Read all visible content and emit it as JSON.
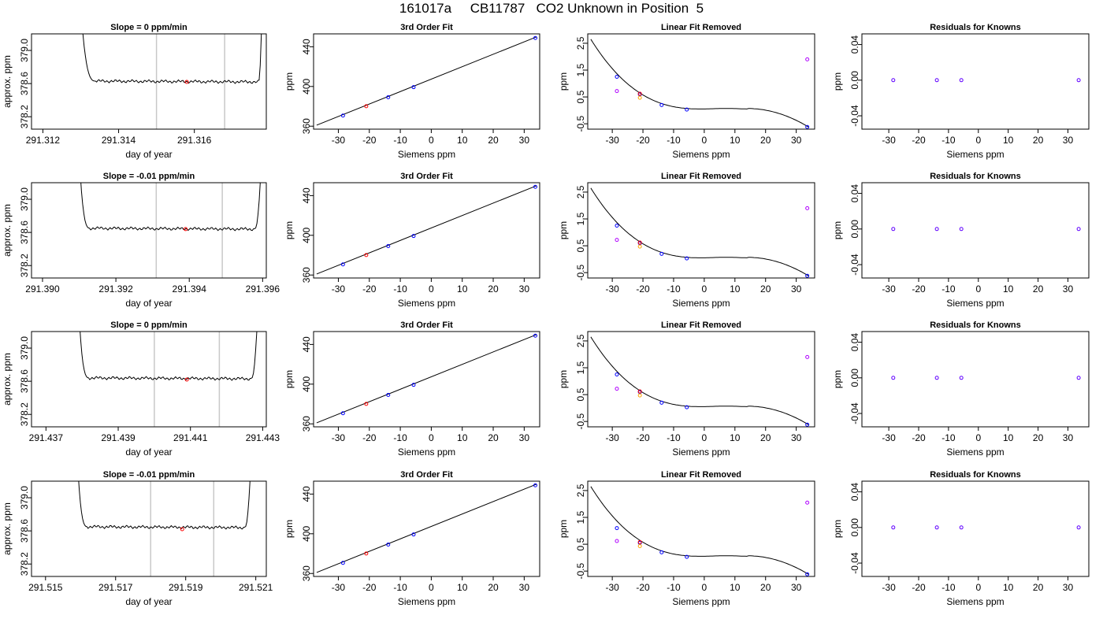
{
  "page_title": "161017a     CB11787   CO2 Unknown in Position  5",
  "chart_data": [
    {
      "type": "line",
      "title": "Slope =  0  ppm/min",
      "xlabel": "day of year",
      "ylabel": "approx. ppm",
      "xlim": [
        291.3117,
        291.3179
      ],
      "ylim": [
        378.05,
        379.2
      ],
      "xticks": [
        "291.312",
        "291.314",
        "291.316"
      ],
      "xtick_values": [
        291.312,
        291.314,
        291.316
      ],
      "yticks": [
        "378.2",
        "378.6",
        "379.0"
      ],
      "ytick_values": [
        378.2,
        378.6,
        379.0
      ],
      "vlines": [
        291.315,
        291.3168
      ],
      "trace": {
        "start": 291.313,
        "end": 291.3178,
        "plateau_start": 291.3134,
        "plateau_end": 291.3177,
        "plateau_level": 378.63
      },
      "marker": {
        "x": 291.3158,
        "y": 378.62,
        "color": "#ff0000"
      }
    },
    {
      "type": "scatter",
      "title": "3rd Order Fit",
      "xlabel": "Siemens ppm",
      "ylabel": "ppm",
      "xlim": [
        -38,
        35
      ],
      "ylim": [
        357,
        453
      ],
      "xticks": [
        "-30",
        "-20",
        "-10",
        "0",
        "10",
        "20",
        "30"
      ],
      "xtick_values": [
        -30,
        -20,
        -10,
        0,
        10,
        20,
        30
      ],
      "yticks": [
        "360",
        "400",
        "440"
      ],
      "ytick_values": [
        360,
        400,
        440
      ],
      "fit_line": [
        [
          -37,
          361
        ],
        [
          34,
          450
        ]
      ],
      "series": [
        {
          "values": [
            [
              -28.5,
              370.7
            ],
            [
              -13.9,
              389.1
            ],
            [
              -5.7,
              399.3
            ],
            [
              33.6,
              448.8
            ]
          ],
          "color": "#0000ff"
        },
        {
          "values": [
            [
              -21.0,
              380.1
            ]
          ],
          "color": "#ff0000"
        }
      ]
    },
    {
      "type": "scatter",
      "title": "Linear Fit Removed",
      "xlabel": "Siemens ppm",
      "ylabel": "ppm",
      "xlim": [
        -38,
        36
      ],
      "ylim": [
        -0.7,
        2.85
      ],
      "xticks": [
        "-30",
        "-20",
        "-10",
        "0",
        "10",
        "20",
        "30"
      ],
      "xtick_values": [
        -30,
        -20,
        -10,
        0,
        10,
        20,
        30
      ],
      "yticks": [
        "-0.5",
        "0.5",
        "1.5",
        "2.5"
      ],
      "ytick_values": [
        -0.5,
        0.5,
        1.5,
        2.5
      ],
      "curve": {
        "x0": -37,
        "x1": 34,
        "y_start": 2.65,
        "y_flat": 0.05,
        "y_end": -0.62
      },
      "series": [
        {
          "values": [
            [
              -28.5,
              1.25
            ],
            [
              -21.0,
              0.6
            ],
            [
              -13.9,
              0.2
            ],
            [
              -5.7,
              0.03
            ],
            [
              33.6,
              -0.62
            ]
          ],
          "color": "#0000ff"
        },
        {
          "values": [
            [
              -28.5,
              0.72
            ],
            [
              33.6,
              1.9
            ]
          ],
          "color": "#b000ff"
        },
        {
          "values": [
            [
              -21.0,
              0.47
            ]
          ],
          "color": "#ffa500"
        },
        {
          "values": [
            [
              -21.0,
              0.62
            ]
          ],
          "color": "#ff0000"
        }
      ]
    },
    {
      "type": "scatter",
      "title": "Residuals for Knowns",
      "xlabel": "Siemens ppm",
      "ylabel": "ppm",
      "xlim": [
        -39,
        37
      ],
      "ylim": [
        -0.055,
        0.052
      ],
      "xticks": [
        "-30",
        "-20",
        "-10",
        "0",
        "10",
        "20",
        "30"
      ],
      "xtick_values": [
        -30,
        -20,
        -10,
        0,
        10,
        20,
        30
      ],
      "yticks": [
        "-0.04",
        "0.00",
        "0.04"
      ],
      "ytick_values": [
        -0.04,
        0.0,
        0.04
      ],
      "series": [
        {
          "values": [
            [
              -28.5,
              0.0
            ],
            [
              -13.9,
              0.0
            ],
            [
              -5.7,
              0.0
            ],
            [
              33.6,
              0.0
            ]
          ],
          "color": "#6000ff"
        }
      ]
    },
    {
      "type": "line",
      "title": "Slope =  -0.01  ppm/min",
      "xlabel": "day of year",
      "ylabel": "approx. ppm",
      "xlim": [
        291.3897,
        291.3961
      ],
      "ylim": [
        378.05,
        379.2
      ],
      "xticks": [
        "291.390",
        "291.392",
        "291.394",
        "291.396"
      ],
      "xtick_values": [
        291.39,
        291.392,
        291.394,
        291.396
      ],
      "yticks": [
        "378.2",
        "378.6",
        "379.0"
      ],
      "ytick_values": [
        378.2,
        378.6,
        379.0
      ],
      "vlines": [
        291.3931,
        291.3949
      ],
      "trace": {
        "start": 291.391,
        "end": 291.396,
        "plateau_start": 291.3913,
        "plateau_end": 291.3958,
        "plateau_level": 378.65
      },
      "marker": {
        "x": 291.3939,
        "y": 378.64,
        "color": "#ff0000"
      }
    },
    {
      "type": "scatter",
      "title": "3rd Order Fit",
      "xlabel": "Siemens ppm",
      "ylabel": "ppm",
      "xlim": [
        -38,
        35
      ],
      "ylim": [
        357,
        453
      ],
      "xticks": [
        "-30",
        "-20",
        "-10",
        "0",
        "10",
        "20",
        "30"
      ],
      "xtick_values": [
        -30,
        -20,
        -10,
        0,
        10,
        20,
        30
      ],
      "yticks": [
        "360",
        "400",
        "440"
      ],
      "ytick_values": [
        360,
        400,
        440
      ],
      "fit_line": [
        [
          -37,
          361
        ],
        [
          34,
          450
        ]
      ],
      "series": [
        {
          "values": [
            [
              -28.5,
              370.7
            ],
            [
              -13.9,
              389.1
            ],
            [
              -5.7,
              399.3
            ],
            [
              33.6,
              448.8
            ]
          ],
          "color": "#0000ff"
        },
        {
          "values": [
            [
              -21.0,
              380.1
            ]
          ],
          "color": "#ff0000"
        }
      ]
    },
    {
      "type": "scatter",
      "title": "Linear Fit Removed",
      "xlabel": "Siemens ppm",
      "ylabel": "ppm",
      "xlim": [
        -38,
        36
      ],
      "ylim": [
        -0.7,
        2.85
      ],
      "xticks": [
        "-30",
        "-20",
        "-10",
        "0",
        "10",
        "20",
        "30"
      ],
      "xtick_values": [
        -30,
        -20,
        -10,
        0,
        10,
        20,
        30
      ],
      "yticks": [
        "-0.5",
        "0.5",
        "1.5",
        "2.5"
      ],
      "ytick_values": [
        -0.5,
        0.5,
        1.5,
        2.5
      ],
      "curve": {
        "x0": -37,
        "x1": 34,
        "y_start": 2.65,
        "y_flat": 0.05,
        "y_end": -0.62
      },
      "series": [
        {
          "values": [
            [
              -28.5,
              1.25
            ],
            [
              -21.0,
              0.6
            ],
            [
              -13.9,
              0.2
            ],
            [
              -5.7,
              0.03
            ],
            [
              33.6,
              -0.62
            ]
          ],
          "color": "#0000ff"
        },
        {
          "values": [
            [
              -28.5,
              0.72
            ],
            [
              33.6,
              1.9
            ]
          ],
          "color": "#b000ff"
        },
        {
          "values": [
            [
              -21.0,
              0.47
            ]
          ],
          "color": "#ffa500"
        },
        {
          "values": [
            [
              -21.0,
              0.62
            ]
          ],
          "color": "#ff0000"
        }
      ]
    },
    {
      "type": "scatter",
      "title": "Residuals for Knowns",
      "xlabel": "Siemens ppm",
      "ylabel": "ppm",
      "xlim": [
        -39,
        37
      ],
      "ylim": [
        -0.055,
        0.052
      ],
      "xticks": [
        "-30",
        "-20",
        "-10",
        "0",
        "10",
        "20",
        "30"
      ],
      "xtick_values": [
        -30,
        -20,
        -10,
        0,
        10,
        20,
        30
      ],
      "yticks": [
        "-0.04",
        "0.00",
        "0.04"
      ],
      "ytick_values": [
        -0.04,
        0.0,
        0.04
      ],
      "series": [
        {
          "values": [
            [
              -28.5,
              0.0
            ],
            [
              -13.9,
              0.0
            ],
            [
              -5.7,
              0.0
            ],
            [
              33.6,
              0.0
            ]
          ],
          "color": "#6000ff"
        }
      ]
    },
    {
      "type": "line",
      "title": "Slope =  0  ppm/min",
      "xlabel": "day of year",
      "ylabel": "approx. ppm",
      "xlim": [
        291.4366,
        291.4431
      ],
      "ylim": [
        378.05,
        379.2
      ],
      "xticks": [
        "291.437",
        "291.439",
        "291.441",
        "291.443"
      ],
      "xtick_values": [
        291.437,
        291.439,
        291.441,
        291.443
      ],
      "yticks": [
        "378.2",
        "378.6",
        "379.0"
      ],
      "ytick_values": [
        378.2,
        378.6,
        379.0
      ],
      "vlines": [
        291.44,
        291.4418
      ],
      "trace": {
        "start": 291.4379,
        "end": 291.4429,
        "plateau_start": 291.4382,
        "plateau_end": 291.4427,
        "plateau_level": 378.64
      },
      "marker": {
        "x": 291.4409,
        "y": 378.62,
        "color": "#ff0000"
      }
    },
    {
      "type": "scatter",
      "title": "3rd Order Fit",
      "xlabel": "Siemens ppm",
      "ylabel": "ppm",
      "xlim": [
        -38,
        35
      ],
      "ylim": [
        357,
        453
      ],
      "xticks": [
        "-30",
        "-20",
        "-10",
        "0",
        "10",
        "20",
        "30"
      ],
      "xtick_values": [
        -30,
        -20,
        -10,
        0,
        10,
        20,
        30
      ],
      "yticks": [
        "360",
        "400",
        "440"
      ],
      "ytick_values": [
        360,
        400,
        440
      ],
      "fit_line": [
        [
          -37,
          361
        ],
        [
          34,
          450
        ]
      ],
      "series": [
        {
          "values": [
            [
              -28.5,
              370.7
            ],
            [
              -13.9,
              389.1
            ],
            [
              -5.7,
              399.3
            ],
            [
              33.6,
              448.8
            ]
          ],
          "color": "#0000ff"
        },
        {
          "values": [
            [
              -21.0,
              380.1
            ]
          ],
          "color": "#ff0000"
        }
      ]
    },
    {
      "type": "scatter",
      "title": "Linear Fit Removed",
      "xlabel": "Siemens ppm",
      "ylabel": "ppm",
      "xlim": [
        -38,
        36
      ],
      "ylim": [
        -0.7,
        2.85
      ],
      "xticks": [
        "-30",
        "-20",
        "-10",
        "0",
        "10",
        "20",
        "30"
      ],
      "xtick_values": [
        -30,
        -20,
        -10,
        0,
        10,
        20,
        30
      ],
      "yticks": [
        "-0.5",
        "0.5",
        "1.5",
        "2.5"
      ],
      "ytick_values": [
        -0.5,
        0.5,
        1.5,
        2.5
      ],
      "curve": {
        "x0": -37,
        "x1": 34,
        "y_start": 2.65,
        "y_flat": 0.05,
        "y_end": -0.62
      },
      "series": [
        {
          "values": [
            [
              -28.5,
              1.25
            ],
            [
              -21.0,
              0.6
            ],
            [
              -13.9,
              0.2
            ],
            [
              -5.7,
              0.03
            ],
            [
              33.6,
              -0.62
            ]
          ],
          "color": "#0000ff"
        },
        {
          "values": [
            [
              -28.5,
              0.72
            ],
            [
              33.6,
              1.9
            ]
          ],
          "color": "#b000ff"
        },
        {
          "values": [
            [
              -21.0,
              0.47
            ]
          ],
          "color": "#ffa500"
        },
        {
          "values": [
            [
              -21.0,
              0.62
            ]
          ],
          "color": "#ff0000"
        }
      ]
    },
    {
      "type": "scatter",
      "title": "Residuals for Knowns",
      "xlabel": "Siemens ppm",
      "ylabel": "ppm",
      "xlim": [
        -39,
        37
      ],
      "ylim": [
        -0.055,
        0.052
      ],
      "xticks": [
        "-30",
        "-20",
        "-10",
        "0",
        "10",
        "20",
        "30"
      ],
      "xtick_values": [
        -30,
        -20,
        -10,
        0,
        10,
        20,
        30
      ],
      "yticks": [
        "-0.04",
        "0.00",
        "0.04"
      ],
      "ytick_values": [
        -0.04,
        0.0,
        0.04
      ],
      "series": [
        {
          "values": [
            [
              -28.5,
              0.0
            ],
            [
              -13.9,
              0.0
            ],
            [
              -5.7,
              0.0
            ],
            [
              33.6,
              0.0
            ]
          ],
          "color": "#6000ff"
        }
      ]
    },
    {
      "type": "line",
      "title": "Slope =  -0.01  ppm/min",
      "xlabel": "day of year",
      "ylabel": "approx. ppm",
      "xlim": [
        291.5146,
        291.5213
      ],
      "ylim": [
        378.05,
        379.2
      ],
      "xticks": [
        "291.515",
        "291.517",
        "291.519",
        "291.521"
      ],
      "xtick_values": [
        291.515,
        291.517,
        291.519,
        291.521
      ],
      "yticks": [
        "378.2",
        "378.6",
        "379.0"
      ],
      "ytick_values": [
        378.2,
        378.6,
        379.0
      ],
      "vlines": [
        291.518,
        291.5198
      ],
      "trace": {
        "start": 291.5159,
        "end": 291.5209,
        "plateau_start": 291.5162,
        "plateau_end": 291.5207,
        "plateau_level": 378.65
      },
      "marker": {
        "x": 291.5189,
        "y": 378.62,
        "color": "#ff0000"
      }
    },
    {
      "type": "scatter",
      "title": "3rd Order Fit",
      "xlabel": "Siemens ppm",
      "ylabel": "ppm",
      "xlim": [
        -38,
        35
      ],
      "ylim": [
        357,
        453
      ],
      "xticks": [
        "-30",
        "-20",
        "-10",
        "0",
        "10",
        "20",
        "30"
      ],
      "xtick_values": [
        -30,
        -20,
        -10,
        0,
        10,
        20,
        30
      ],
      "yticks": [
        "360",
        "400",
        "440"
      ],
      "ytick_values": [
        360,
        400,
        440
      ],
      "fit_line": [
        [
          -37,
          361
        ],
        [
          34,
          450
        ]
      ],
      "series": [
        {
          "values": [
            [
              -28.5,
              370.7
            ],
            [
              -13.9,
              389.1
            ],
            [
              -5.7,
              399.3
            ],
            [
              33.6,
              448.8
            ]
          ],
          "color": "#0000ff"
        },
        {
          "values": [
            [
              -21.0,
              380.1
            ]
          ],
          "color": "#ff0000"
        }
      ]
    },
    {
      "type": "scatter",
      "title": "Linear Fit Removed",
      "xlabel": "Siemens ppm",
      "ylabel": "ppm",
      "xlim": [
        -38,
        36
      ],
      "ylim": [
        -0.7,
        2.85
      ],
      "xticks": [
        "-30",
        "-20",
        "-10",
        "0",
        "10",
        "20",
        "30"
      ],
      "xtick_values": [
        -30,
        -20,
        -10,
        0,
        10,
        20,
        30
      ],
      "yticks": [
        "-0.5",
        "0.5",
        "1.5",
        "2.5"
      ],
      "ytick_values": [
        -0.5,
        0.5,
        1.5,
        2.5
      ],
      "curve": {
        "x0": -37,
        "x1": 34,
        "y_start": 2.65,
        "y_flat": 0.05,
        "y_end": -0.62
      },
      "series": [
        {
          "values": [
            [
              -28.5,
              1.1
            ],
            [
              -21.0,
              0.55
            ],
            [
              -13.9,
              0.2
            ],
            [
              -5.7,
              0.03
            ],
            [
              33.6,
              -0.62
            ]
          ],
          "color": "#0000ff"
        },
        {
          "values": [
            [
              -28.5,
              0.62
            ],
            [
              33.6,
              2.05
            ]
          ],
          "color": "#b000ff"
        },
        {
          "values": [
            [
              -21.0,
              0.43
            ]
          ],
          "color": "#ffa500"
        },
        {
          "values": [
            [
              -21.0,
              0.58
            ]
          ],
          "color": "#ff0000"
        }
      ]
    },
    {
      "type": "scatter",
      "title": "Residuals for Knowns",
      "xlabel": "Siemens ppm",
      "ylabel": "ppm",
      "xlim": [
        -39,
        37
      ],
      "ylim": [
        -0.055,
        0.052
      ],
      "xticks": [
        "-30",
        "-20",
        "-10",
        "0",
        "10",
        "20",
        "30"
      ],
      "xtick_values": [
        -30,
        -20,
        -10,
        0,
        10,
        20,
        30
      ],
      "yticks": [
        "-0.04",
        "0.00",
        "0.04"
      ],
      "ytick_values": [
        -0.04,
        0.0,
        0.04
      ],
      "series": [
        {
          "values": [
            [
              -28.5,
              0.0
            ],
            [
              -13.9,
              0.0
            ],
            [
              -5.7,
              0.0
            ],
            [
              33.6,
              0.0
            ]
          ],
          "color": "#6000ff"
        }
      ]
    }
  ]
}
